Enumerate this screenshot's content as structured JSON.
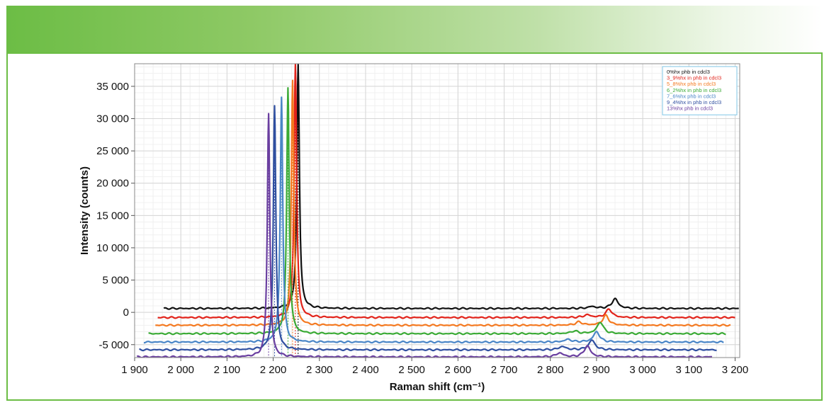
{
  "colors": {
    "accent": "#6cbd45"
  },
  "chart_data": {
    "type": "line",
    "title": "",
    "xlabel": "Raman shift (cm⁻¹)",
    "ylabel": "Intensity (counts)",
    "xlim": [
      1900,
      3210
    ],
    "ylim": [
      -7000,
      38500
    ],
    "grid": true,
    "legend_position": "top-right",
    "x_ticks": [
      1900,
      2000,
      2100,
      2200,
      2300,
      2400,
      2500,
      2600,
      2700,
      2800,
      2900,
      3000,
      3100,
      3200
    ],
    "x_tick_labels": [
      "1 900",
      "2 000",
      "2 100",
      "2 200",
      "2 300",
      "2 400",
      "2 500",
      "2 600",
      "2 700",
      "2 800",
      "2 900",
      "3 000",
      "3 100",
      "3 200"
    ],
    "y_ticks": [
      -5000,
      0,
      5000,
      10000,
      15000,
      20000,
      25000,
      30000,
      35000
    ],
    "y_tick_labels": [
      "-5 000",
      "0",
      "5 000",
      "10 000",
      "15 000",
      "20 000",
      "25 000",
      "30 000",
      "35 000"
    ],
    "series": [
      {
        "name": "0%hx phb in cdcl3",
        "color": "#111111",
        "x_start": 1963,
        "x_end": 3208,
        "baseline": 600,
        "peak1_x": 2254,
        "peak1_y": 38500,
        "peak2_x": 2940,
        "peak2_y": 2100,
        "minor_x": 2890,
        "minor_y": 900
      },
      {
        "name": "3_9%hx in phb in cdcl3",
        "color": "#e2231a",
        "x_start": 1950,
        "x_end": 3200,
        "baseline": -800,
        "peak1_x": 2248,
        "peak1_y": 38500,
        "peak2_x": 2927,
        "peak2_y": 500,
        "minor_x": 2880,
        "minor_y": -400
      },
      {
        "name": "5_8%hx phb in cdcl3",
        "color": "#f47920",
        "x_start": 1945,
        "x_end": 3190,
        "baseline": -2000,
        "peak1_x": 2242,
        "peak1_y": 36000,
        "peak2_x": 2920,
        "peak2_y": -500,
        "minor_x": 2862,
        "minor_y": -1500
      },
      {
        "name": "6_2%hx in phb in cdcl3",
        "color": "#3aaa35",
        "x_start": 1930,
        "x_end": 3180,
        "baseline": -3300,
        "peak1_x": 2232,
        "peak1_y": 34700,
        "peak2_x": 2908,
        "peak2_y": -1500,
        "minor_x": 2852,
        "minor_y": -2900
      },
      {
        "name": "7_6%hx phb in cdcl3",
        "color": "#4a86c7",
        "x_start": 1920,
        "x_end": 3175,
        "baseline": -4600,
        "peak1_x": 2218,
        "peak1_y": 33400,
        "peak2_x": 2900,
        "peak2_y": -3000,
        "minor_x": 2838,
        "minor_y": -4200
      },
      {
        "name": "9_4%hx in phb in cdcl3",
        "color": "#2f4fa0",
        "x_start": 1910,
        "x_end": 3160,
        "baseline": -5800,
        "peak1_x": 2203,
        "peak1_y": 32000,
        "peak2_x": 2890,
        "peak2_y": -4300,
        "minor_x": 2826,
        "minor_y": -5300
      },
      {
        "name": "13%hx phb in cdcl3",
        "color": "#6a3fa0",
        "x_start": 1905,
        "x_end": 3150,
        "baseline": -6900,
        "peak1_x": 2190,
        "peak1_y": 30800,
        "peak2_x": 2880,
        "peak2_y": -5200,
        "minor_x": 2820,
        "minor_y": -6300
      }
    ]
  }
}
